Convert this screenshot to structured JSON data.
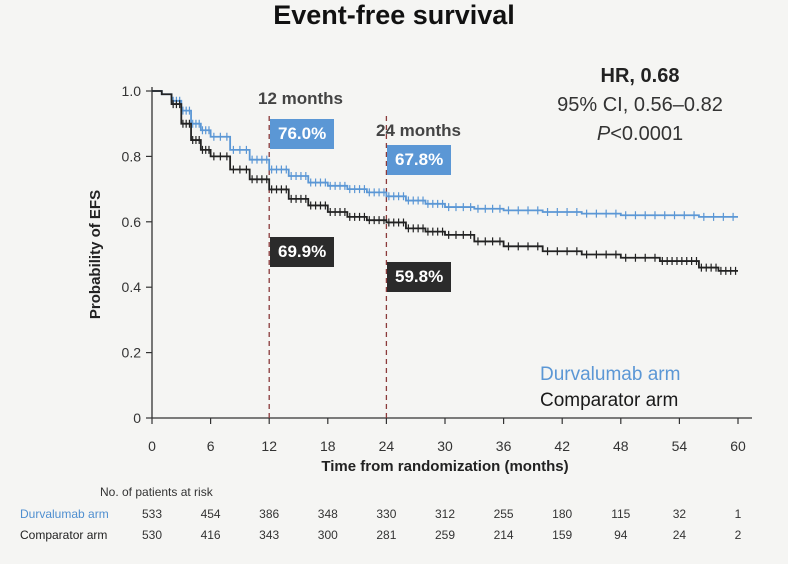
{
  "title": "Event-free survival",
  "hazard": {
    "hr": "HR, 0.68",
    "ci": "95% CI, 0.56–0.82",
    "p_italic": "P",
    "p_rest": "<0.0001"
  },
  "annotations": {
    "m12_label": "12 months",
    "m24_label": "24 months",
    "durva_12": "76.0%",
    "comp_12": "69.9%",
    "durva_24": "67.8%",
    "comp_24": "59.8%"
  },
  "legend": {
    "durvalumab": "Durvalumab arm",
    "comparator": "Comparator arm"
  },
  "risk_table": {
    "header": "No. of patients at risk",
    "durvalumab_label": "Durvalumab arm",
    "comparator_label": "Comparator arm",
    "durvalumab": [
      "533",
      "454",
      "386",
      "348",
      "330",
      "312",
      "255",
      "180",
      "115",
      "32",
      "1"
    ],
    "comparator": [
      "530",
      "416",
      "343",
      "300",
      "281",
      "259",
      "214",
      "159",
      "94",
      "24",
      "2"
    ]
  },
  "colors": {
    "durvalumab": "#5b97d5",
    "comparator": "#222222",
    "axis": "#333333",
    "dashed": "#8b3a3a"
  },
  "chart_data": {
    "type": "line",
    "title": "Event-free survival",
    "xlabel": "Time from randomization (months)",
    "ylabel": "Probability of EFS",
    "xlim": [
      0,
      60
    ],
    "ylim": [
      0,
      1.0
    ],
    "xticks": [
      "0",
      "6",
      "12",
      "18",
      "24",
      "30",
      "36",
      "42",
      "48",
      "54",
      "60"
    ],
    "yticks": [
      "0",
      "0.2",
      "0.4",
      "0.6",
      "0.8",
      "1.0"
    ],
    "reference_lines_x": [
      12,
      24
    ],
    "series": [
      {
        "name": "Durvalumab arm",
        "x": [
          0,
          1,
          2,
          3,
          4,
          5,
          6,
          8,
          10,
          12,
          14,
          16,
          18,
          20,
          22,
          24,
          26,
          28,
          30,
          33,
          36,
          40,
          44,
          48,
          52,
          56,
          60
        ],
        "y": [
          1.0,
          0.99,
          0.97,
          0.94,
          0.9,
          0.88,
          0.86,
          0.82,
          0.79,
          0.76,
          0.74,
          0.72,
          0.71,
          0.7,
          0.69,
          0.678,
          0.665,
          0.655,
          0.645,
          0.64,
          0.635,
          0.63,
          0.625,
          0.62,
          0.62,
          0.615,
          0.615
        ]
      },
      {
        "name": "Comparator arm",
        "x": [
          0,
          1,
          2,
          3,
          4,
          5,
          6,
          8,
          10,
          12,
          14,
          16,
          18,
          20,
          22,
          24,
          26,
          28,
          30,
          33,
          36,
          40,
          44,
          48,
          52,
          54,
          56,
          58,
          60
        ],
        "y": [
          1.0,
          0.99,
          0.96,
          0.9,
          0.85,
          0.82,
          0.8,
          0.76,
          0.73,
          0.699,
          0.67,
          0.65,
          0.63,
          0.615,
          0.605,
          0.598,
          0.58,
          0.57,
          0.56,
          0.54,
          0.525,
          0.51,
          0.5,
          0.49,
          0.48,
          0.48,
          0.46,
          0.45,
          0.45
        ]
      }
    ]
  }
}
